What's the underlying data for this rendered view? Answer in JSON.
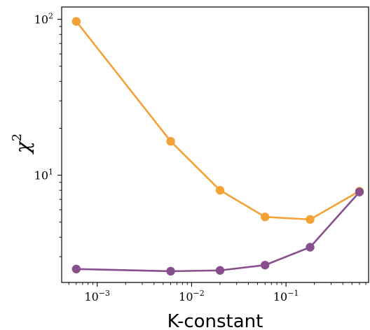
{
  "chart_data": {
    "type": "line",
    "xlabel": "K-constant",
    "ylabel_base": "χ",
    "ylabel_exponent": "2",
    "xscale": "log",
    "yscale": "log",
    "xlim": [
      0.00042,
      0.75
    ],
    "ylim": [
      2.05,
      120
    ],
    "grid": false,
    "x_ticks": [
      {
        "value": 0.001,
        "base": "10",
        "exp": "−3"
      },
      {
        "value": 0.01,
        "base": "10",
        "exp": "−2"
      },
      {
        "value": 0.1,
        "base": "10",
        "exp": "−1"
      }
    ],
    "y_ticks": [
      {
        "value": 10,
        "base": "10",
        "exp": "1"
      },
      {
        "value": 100,
        "base": "10",
        "exp": "2"
      }
    ],
    "x": [
      0.0006,
      0.006,
      0.02,
      0.06,
      0.18,
      0.6
    ],
    "series": [
      {
        "color": "#f4a236",
        "values": [
          97,
          16.5,
          8.0,
          5.4,
          5.2,
          7.9
        ]
      },
      {
        "color": "#874f8b",
        "values": [
          2.5,
          2.42,
          2.45,
          2.65,
          3.45,
          7.8
        ]
      }
    ]
  }
}
